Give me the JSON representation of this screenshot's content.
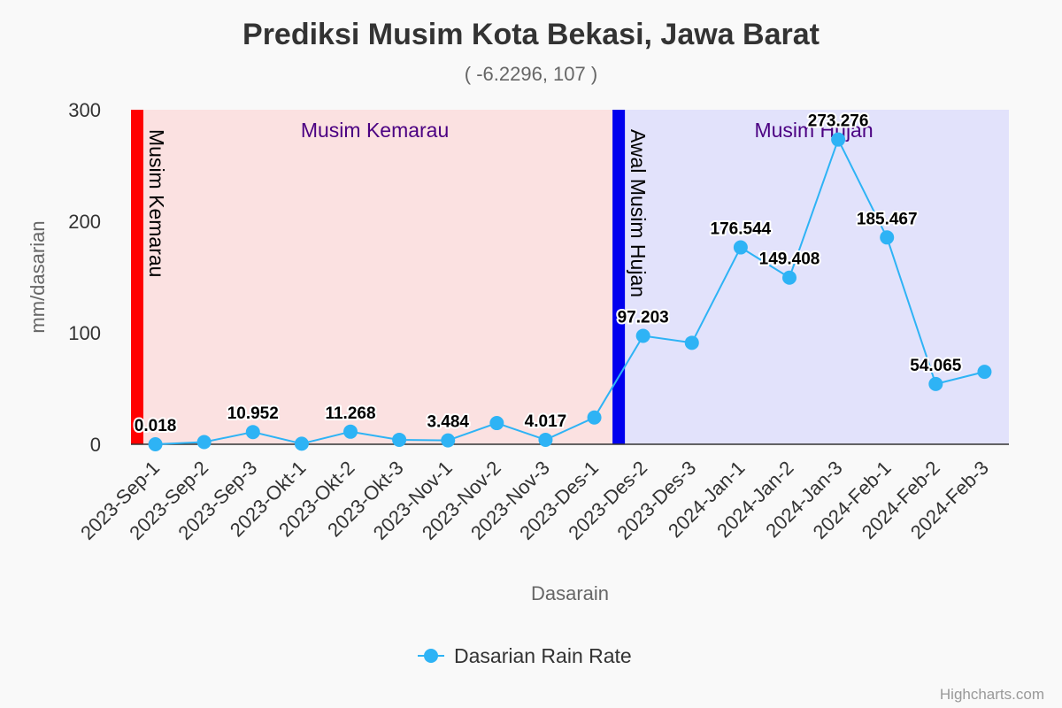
{
  "chart_data": {
    "type": "line",
    "title": "Prediksi Musim Kota Bekasi, Jawa Barat",
    "subtitle": "( -6.2296, 107 )",
    "xlabel": "Dasarain",
    "ylabel": "mm/dasarian",
    "ylim": [
      0,
      300
    ],
    "yticks": [
      0,
      100,
      200,
      300
    ],
    "categories": [
      "2023-Sep-1",
      "2023-Sep-2",
      "2023-Sep-3",
      "2023-Okt-1",
      "2023-Okt-2",
      "2023-Okt-3",
      "2023-Nov-1",
      "2023-Nov-2",
      "2023-Nov-3",
      "2023-Des-1",
      "2023-Des-2",
      "2023-Des-3",
      "2024-Jan-1",
      "2024-Jan-2",
      "2024-Jan-3",
      "2024-Feb-1",
      "2024-Feb-2",
      "2024-Feb-3"
    ],
    "series": [
      {
        "name": "Dasarian Rain Rate",
        "color": "#2eb3f5",
        "values": [
          0.018,
          2,
          10.952,
          0.5,
          11.268,
          4,
          3.484,
          19,
          4.017,
          24,
          97.203,
          91,
          176.544,
          149.408,
          273.276,
          185.467,
          54.065,
          65
        ],
        "labels": [
          "0.018",
          "",
          "10.952",
          "",
          "11.268",
          "",
          "3.484",
          "",
          "4.017",
          "",
          "97.203",
          "",
          "176.544",
          "149.408",
          "273.276",
          "185.467",
          "54.065",
          ""
        ]
      }
    ],
    "bands": [
      {
        "label": "Musim Kemarau",
        "from": 0,
        "to": 10,
        "color": "#fbe1e1"
      },
      {
        "label": "Musim Hujan",
        "from": 10,
        "to": 18,
        "color": "#e2e2fb"
      }
    ],
    "plot_lines": [
      {
        "label": "Musim Kemarau",
        "at": 0,
        "color": "#ff0000"
      },
      {
        "label": "Awal Musim Hujan",
        "at": 10,
        "color": "#0000ee"
      }
    ],
    "legend": {
      "position": "bottom-center"
    },
    "grid": false,
    "credits": "Highcharts.com"
  }
}
